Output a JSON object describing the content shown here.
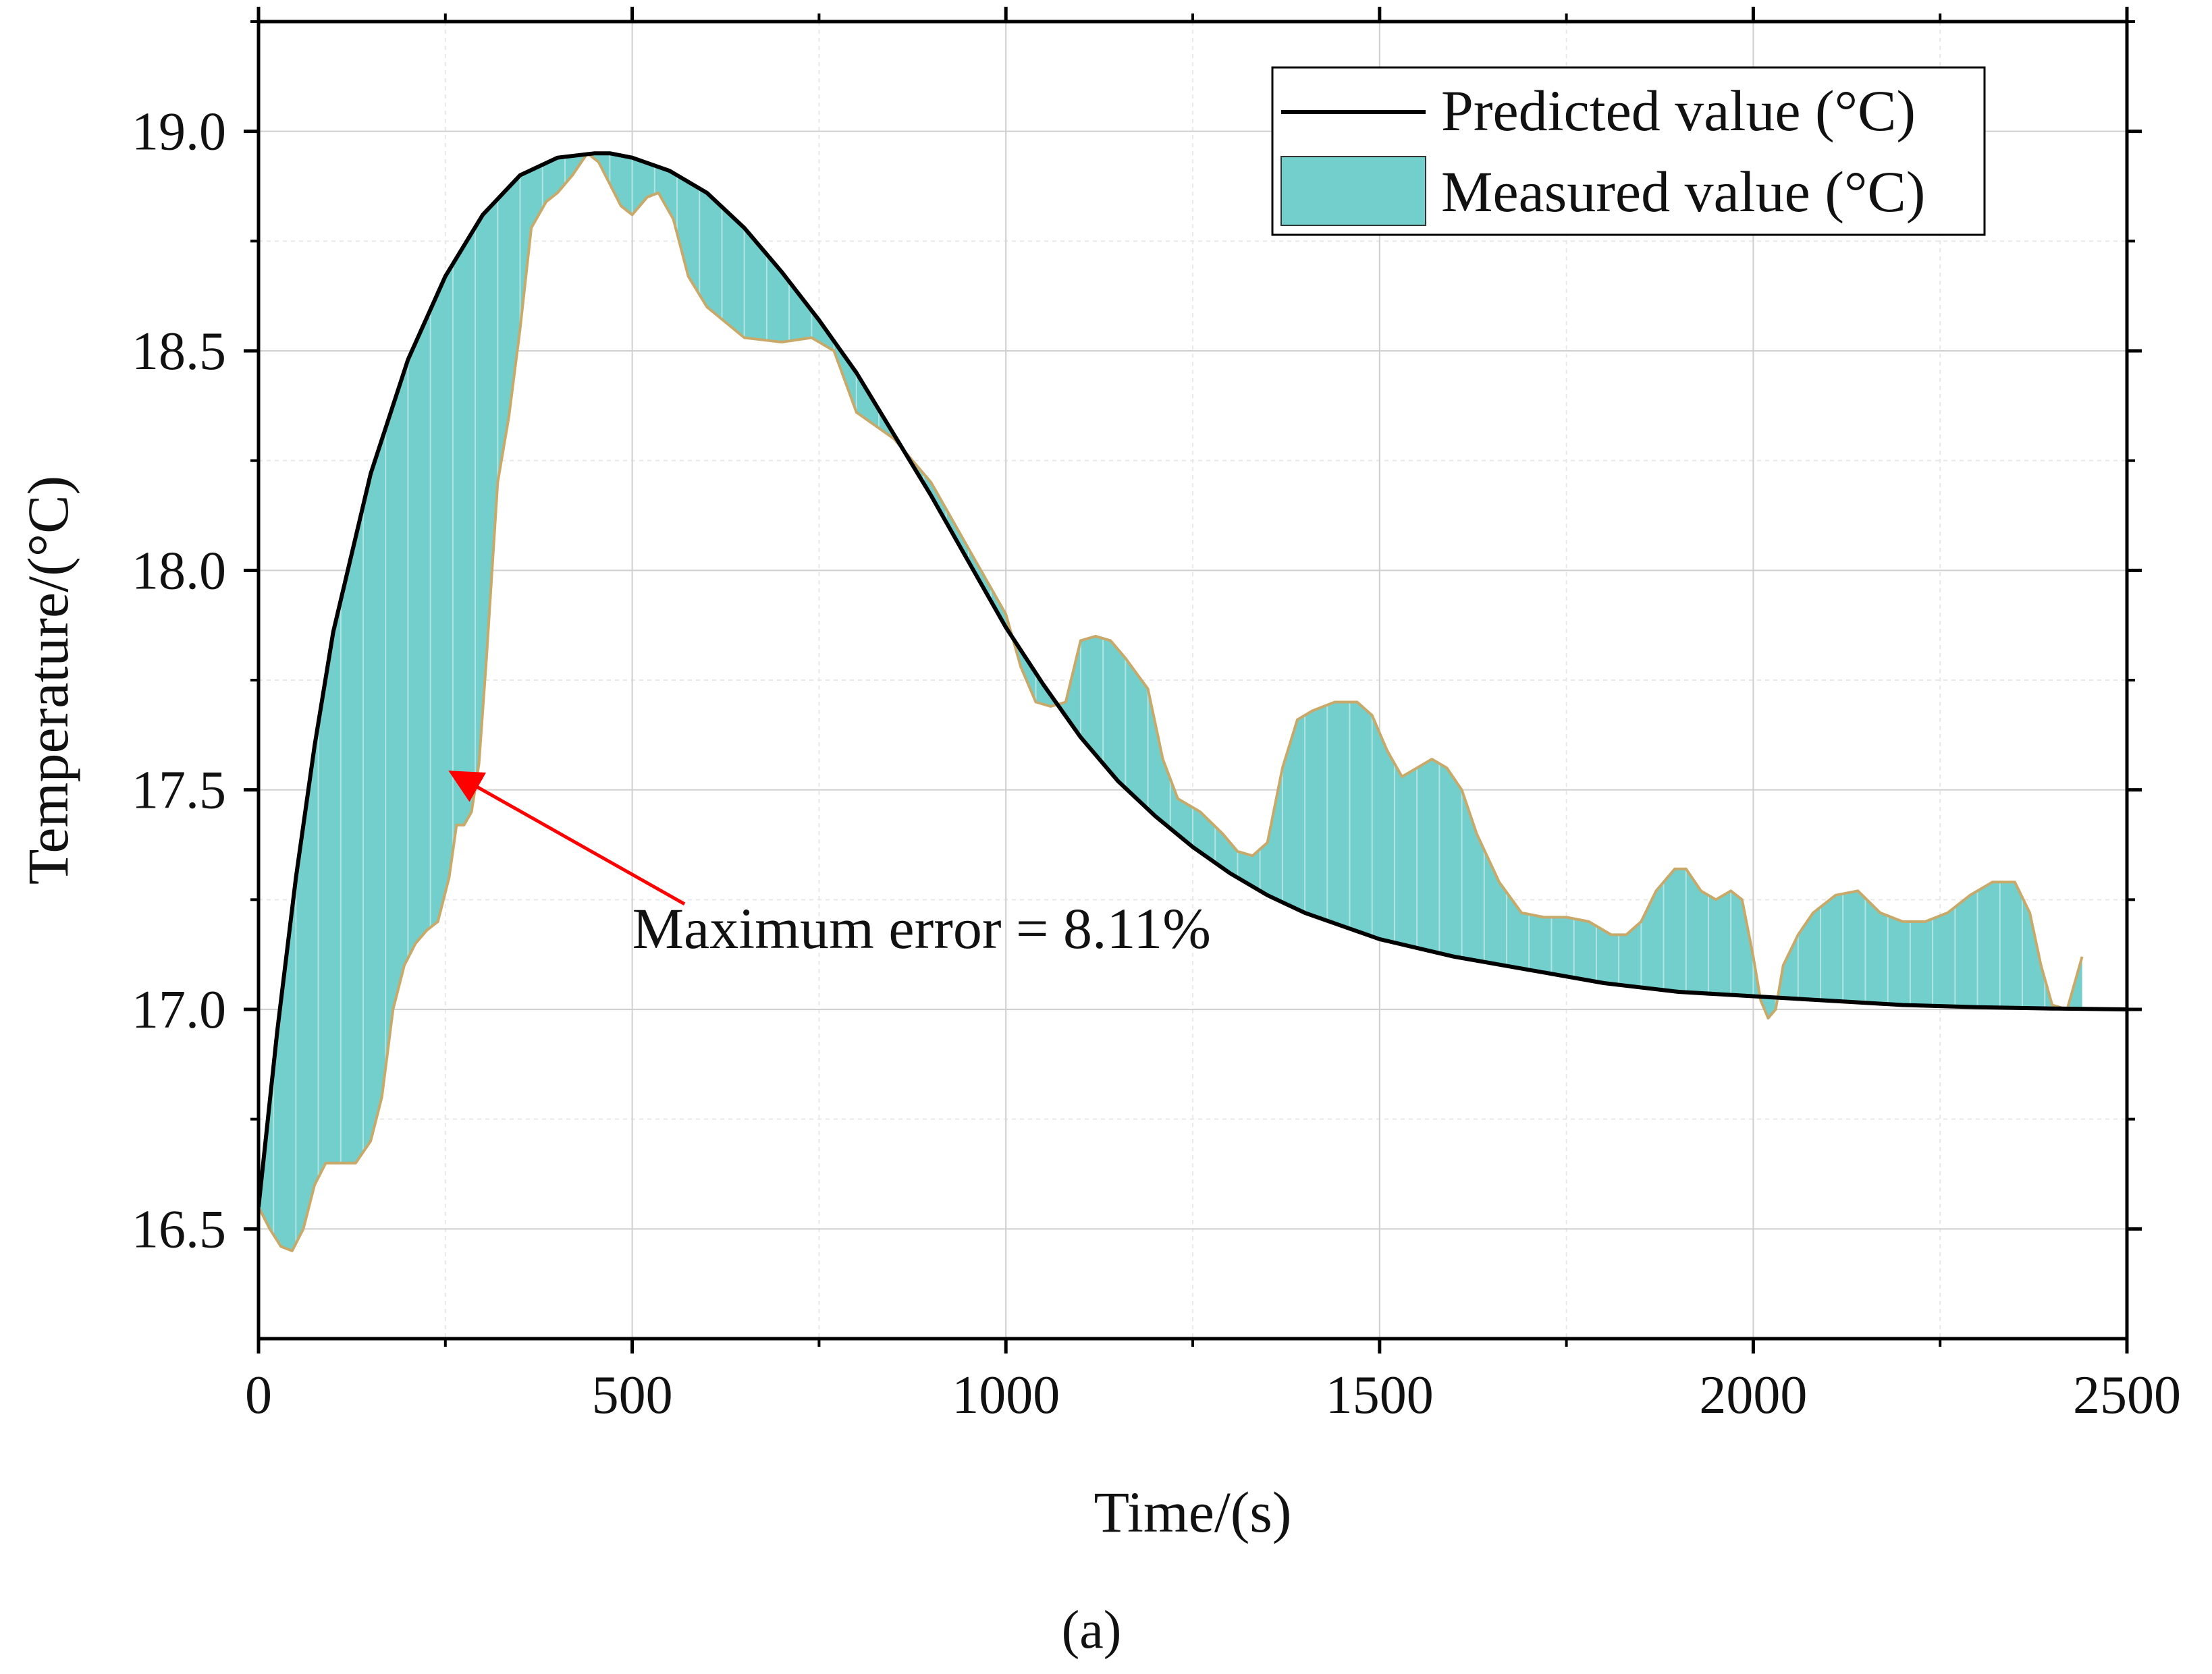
{
  "figure_label": "(a)",
  "chart_data": {
    "type": "area",
    "title": "",
    "xlabel": "Time/(s)",
    "ylabel": "Temperature/(°C)",
    "xlim": [
      0,
      2500
    ],
    "ylim": [
      16.25,
      19.25
    ],
    "xticks": [
      0,
      500,
      1000,
      1500,
      2000,
      2500
    ],
    "xtick_labels": [
      "0",
      "500",
      "1000",
      "1500",
      "2000",
      "2500"
    ],
    "yticks": [
      16.5,
      17.0,
      17.5,
      18.0,
      18.5,
      19.0
    ],
    "ytick_labels": [
      "16.5",
      "17.0",
      "17.5",
      "18.0",
      "18.5",
      "19.0"
    ],
    "grid": true,
    "legend": {
      "position": "top-right",
      "entries": [
        "Predicted value (°C)",
        "Measured value (°C)"
      ]
    },
    "colors": {
      "predicted": "#000000",
      "measured_fill": "#72cfcc",
      "measured_edge": "#c8a96a",
      "annotation": "#ff0000"
    },
    "annotation": {
      "text": "Maximum error = 8.11%",
      "target": {
        "x": 258,
        "y": 17.54
      },
      "tail": {
        "x": 570,
        "y": 17.24
      },
      "text_position": {
        "x": 500,
        "y": 17.14
      }
    },
    "series": [
      {
        "name": "Predicted value (°C)",
        "kind": "line",
        "x": [
          0,
          25,
          50,
          75,
          100,
          150,
          200,
          250,
          300,
          350,
          400,
          450,
          470,
          500,
          550,
          600,
          650,
          700,
          750,
          800,
          850,
          900,
          950,
          1000,
          1050,
          1100,
          1150,
          1200,
          1250,
          1300,
          1350,
          1400,
          1450,
          1500,
          1550,
          1600,
          1700,
          1800,
          1900,
          2000,
          2100,
          2200,
          2300,
          2400,
          2500
        ],
        "y": [
          16.55,
          16.95,
          17.3,
          17.6,
          17.86,
          18.22,
          18.48,
          18.67,
          18.81,
          18.9,
          18.94,
          18.95,
          18.95,
          18.94,
          18.91,
          18.86,
          18.78,
          18.68,
          18.57,
          18.45,
          18.31,
          18.17,
          18.02,
          17.87,
          17.74,
          17.62,
          17.52,
          17.44,
          17.37,
          17.31,
          17.26,
          17.22,
          17.19,
          17.16,
          17.14,
          17.12,
          17.09,
          17.06,
          17.04,
          17.03,
          17.02,
          17.01,
          17.005,
          17.002,
          17.0
        ]
      },
      {
        "name": "Measured value (°C)",
        "kind": "area",
        "x": [
          0,
          15,
          30,
          45,
          60,
          75,
          90,
          110,
          130,
          150,
          165,
          180,
          195,
          210,
          225,
          240,
          255,
          265,
          275,
          285,
          295,
          305,
          320,
          335,
          350,
          365,
          385,
          400,
          420,
          440,
          455,
          470,
          485,
          500,
          520,
          535,
          555,
          575,
          600,
          650,
          700,
          740,
          770,
          800,
          850,
          900,
          950,
          1000,
          1020,
          1040,
          1060,
          1080,
          1100,
          1120,
          1140,
          1160,
          1190,
          1210,
          1230,
          1260,
          1290,
          1310,
          1330,
          1350,
          1370,
          1390,
          1410,
          1440,
          1470,
          1490,
          1510,
          1530,
          1550,
          1570,
          1590,
          1610,
          1630,
          1660,
          1690,
          1720,
          1750,
          1780,
          1810,
          1830,
          1850,
          1870,
          1895,
          1910,
          1930,
          1950,
          1970,
          1985,
          2000,
          2010,
          2020,
          2030,
          2040,
          2060,
          2080,
          2110,
          2140,
          2170,
          2200,
          2230,
          2260,
          2290,
          2320,
          2350,
          2370,
          2385,
          2400,
          2420,
          2440
        ],
        "y": [
          16.55,
          16.5,
          16.46,
          16.45,
          16.5,
          16.6,
          16.65,
          16.65,
          16.65,
          16.7,
          16.8,
          17.0,
          17.1,
          17.15,
          17.18,
          17.2,
          17.3,
          17.42,
          17.42,
          17.45,
          17.56,
          17.8,
          18.2,
          18.35,
          18.55,
          18.78,
          18.84,
          18.86,
          18.9,
          18.95,
          18.93,
          18.88,
          18.83,
          18.81,
          18.85,
          18.86,
          18.8,
          18.67,
          18.6,
          18.53,
          18.52,
          18.53,
          18.5,
          18.36,
          18.3,
          18.2,
          18.05,
          17.9,
          17.78,
          17.7,
          17.69,
          17.7,
          17.84,
          17.85,
          17.84,
          17.8,
          17.73,
          17.57,
          17.48,
          17.45,
          17.4,
          17.36,
          17.35,
          17.38,
          17.55,
          17.66,
          17.68,
          17.7,
          17.7,
          17.67,
          17.59,
          17.53,
          17.55,
          17.57,
          17.55,
          17.5,
          17.4,
          17.29,
          17.22,
          17.21,
          17.21,
          17.2,
          17.17,
          17.17,
          17.2,
          17.27,
          17.32,
          17.32,
          17.27,
          17.25,
          17.27,
          17.25,
          17.12,
          17.02,
          16.98,
          17.0,
          17.1,
          17.17,
          17.22,
          17.26,
          17.27,
          17.22,
          17.2,
          17.2,
          17.22,
          17.26,
          17.29,
          17.29,
          17.22,
          17.1,
          17.01,
          17.0,
          17.12
        ]
      }
    ]
  }
}
